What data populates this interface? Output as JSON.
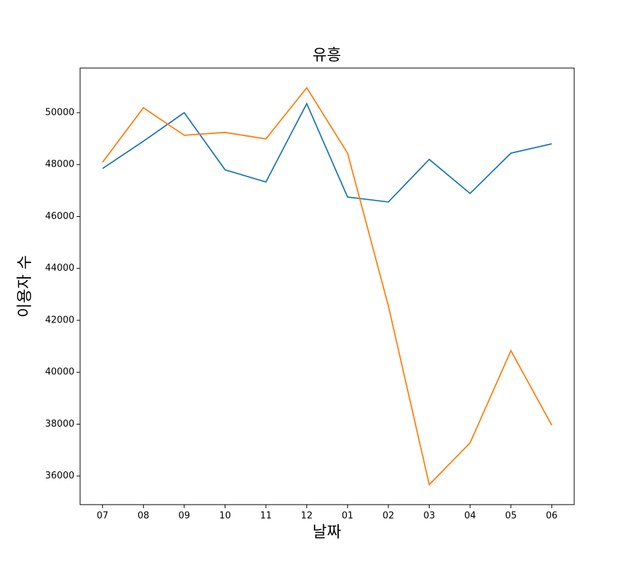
{
  "chart_data": {
    "type": "line",
    "title": "유흥",
    "x_label": "날짜",
    "y_label": "이용자 수",
    "categories": [
      "07",
      "08",
      "09",
      "10",
      "11",
      "12",
      "01",
      "02",
      "03",
      "04",
      "05",
      "06"
    ],
    "series": [
      {
        "color": "#1f77b4",
        "values": [
          47850,
          48900,
          50000,
          47800,
          47330,
          50350,
          46750,
          46560,
          48200,
          46890,
          48440,
          48800
        ]
      },
      {
        "color": "#ff7f0e",
        "values": [
          48090,
          50190,
          49130,
          49240,
          48990,
          50960,
          48440,
          42550,
          35670,
          37280,
          40830,
          37960
        ]
      }
    ],
    "ylim": [
      34900,
      51720
    ],
    "yticks": [
      36000,
      38000,
      40000,
      42000,
      44000,
      46000,
      48000,
      50000
    ],
    "grid": false
  }
}
